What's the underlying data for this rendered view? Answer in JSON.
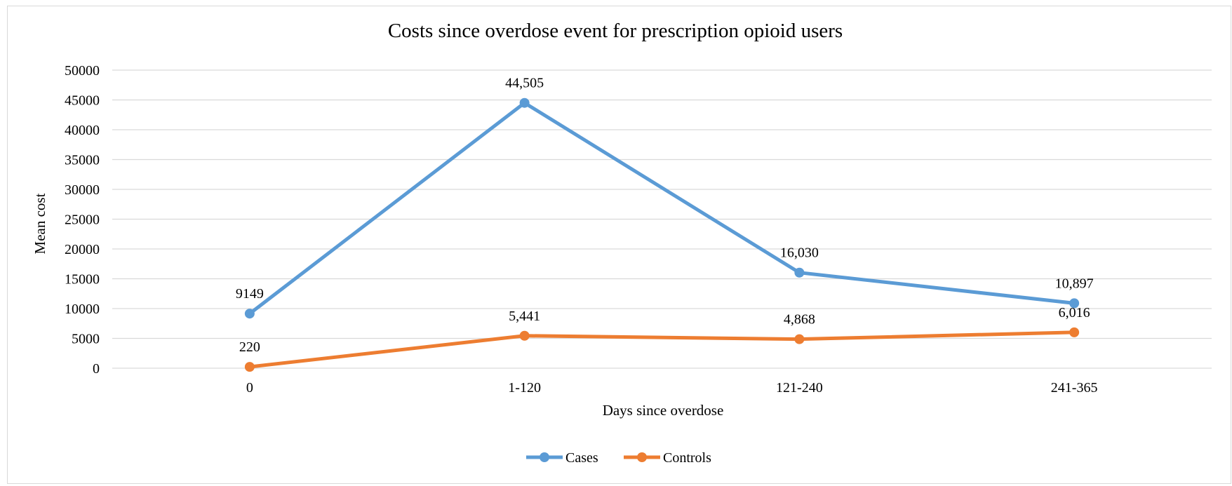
{
  "chart_data": {
    "type": "line",
    "title": "Costs since overdose event for prescription opioid users",
    "xlabel": "Days since overdose",
    "ylabel": "Mean cost",
    "categories": [
      "0",
      "1-120",
      "121-240",
      "241-365"
    ],
    "ylim": [
      0,
      50000
    ],
    "yticks": [
      0,
      5000,
      10000,
      15000,
      20000,
      25000,
      30000,
      35000,
      40000,
      45000,
      50000
    ],
    "grid": true,
    "legend_position": "bottom",
    "series": [
      {
        "name": "Cases",
        "color": "#5b9bd5",
        "values": [
          9149,
          44505,
          16030,
          10897
        ],
        "labels": [
          "9149",
          "44,505",
          "16,030",
          "10,897"
        ]
      },
      {
        "name": "Controls",
        "color": "#ed7d31",
        "values": [
          220,
          5441,
          4868,
          6016
        ],
        "labels": [
          "220",
          "5,441",
          "4,868",
          "6,016"
        ]
      }
    ]
  }
}
